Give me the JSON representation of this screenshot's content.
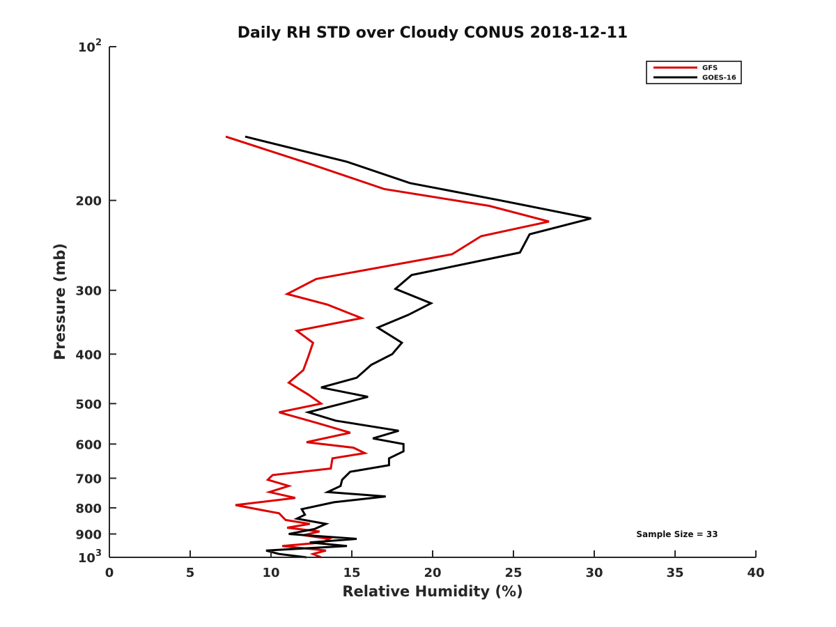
{
  "chart_data": {
    "type": "line",
    "title": "Daily RH STD over Cloudy CONUS 2018-12-11",
    "xlabel": "Relative Humidity (%)",
    "ylabel": "Pressure (mb)",
    "xlim": [
      0,
      40
    ],
    "ylim": [
      100,
      1000
    ],
    "yscale": "log",
    "y_reversed": true,
    "x_ticks": [
      "0",
      "5",
      "10",
      "15",
      "20",
      "25",
      "30",
      "35",
      "40"
    ],
    "y_ticks": [
      {
        "value": 100,
        "base": "10",
        "exp": "2"
      },
      {
        "value": 200,
        "label": "200"
      },
      {
        "value": 300,
        "label": "300"
      },
      {
        "value": 400,
        "label": "400"
      },
      {
        "value": 500,
        "label": "500"
      },
      {
        "value": 600,
        "label": "600"
      },
      {
        "value": 700,
        "label": "700"
      },
      {
        "value": 800,
        "label": "800"
      },
      {
        "value": 900,
        "label": "900"
      },
      {
        "value": 1000,
        "base": "10",
        "exp": "3"
      }
    ],
    "legend_position": "top-right",
    "annotation": "Sample Size = 33",
    "series": [
      {
        "name": "GFS",
        "color": "#dd0000",
        "x": [
          7.2,
          12.5,
          17,
          23.5,
          27.2,
          23,
          21.2,
          12.8,
          11,
          13.5,
          15.6,
          11.6,
          12.6,
          12.3,
          12,
          11.1,
          12.3,
          13.1,
          10.5,
          12.8,
          14.9,
          12.2,
          15.1,
          15.8,
          13.8,
          13.7,
          10.1,
          9.8,
          11.1,
          9.9,
          11.5,
          7.8,
          10.5,
          10.9,
          12.4,
          11,
          13,
          12,
          13.6,
          13.2,
          10.7,
          13.4,
          12.6,
          13.1
        ],
        "y": [
          150,
          170,
          190,
          205,
          220,
          235,
          255,
          285,
          305,
          320,
          340,
          360,
          380,
          405,
          430,
          455,
          480,
          500,
          520,
          545,
          570,
          595,
          610,
          625,
          640,
          670,
          690,
          705,
          725,
          745,
          765,
          790,
          820,
          845,
          860,
          875,
          890,
          905,
          920,
          935,
          950,
          970,
          985,
          1000
        ]
      },
      {
        "name": "GOES-16",
        "color": "#000000",
        "x": [
          8.4,
          14.7,
          18.6,
          24.2,
          29.8,
          26,
          25.4,
          18.7,
          17.7,
          19.9,
          18.5,
          16.6,
          18.1,
          17.5,
          16.2,
          15.3,
          13.1,
          16,
          14.4,
          12.3,
          14,
          17.9,
          16.3,
          18.2,
          18.2,
          17.3,
          17.3,
          14.9,
          14.4,
          14.3,
          13.5,
          17.1,
          13.9,
          11.9,
          12.1,
          11.6,
          13.4,
          12.7,
          11.1,
          15.3,
          12.4,
          14.7,
          9.7,
          10.5,
          12.2
        ],
        "y": [
          150,
          168,
          185,
          200,
          217,
          233,
          253,
          280,
          298,
          318,
          335,
          355,
          380,
          400,
          420,
          445,
          465,
          485,
          500,
          520,
          540,
          565,
          585,
          600,
          620,
          640,
          660,
          680,
          705,
          725,
          745,
          760,
          780,
          805,
          825,
          840,
          860,
          880,
          900,
          920,
          935,
          950,
          970,
          985,
          1000
        ]
      }
    ]
  }
}
